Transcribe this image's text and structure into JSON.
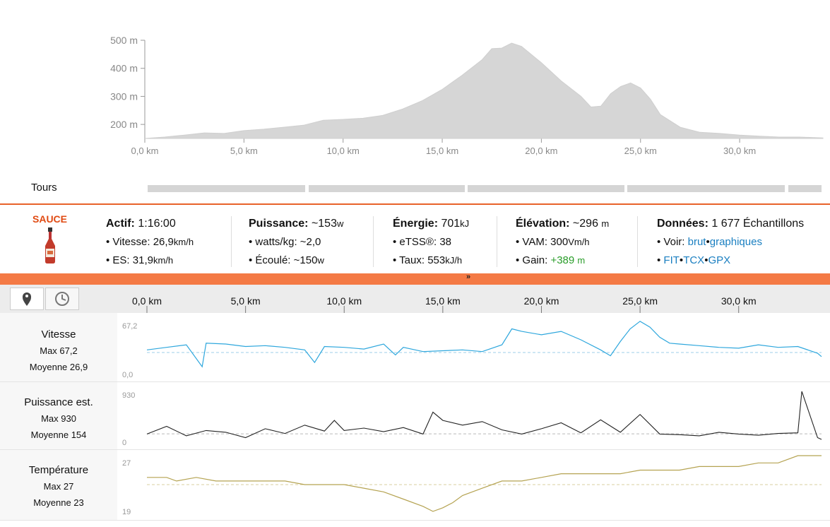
{
  "elevation_chart": {
    "y_ticks": [
      "500 m",
      "400 m",
      "300 m",
      "200 m"
    ],
    "x_ticks": [
      "0,0 km",
      "5,0 km",
      "10,0 km",
      "15,0 km",
      "20,0 km",
      "25,0 km",
      "30,0 km"
    ],
    "fill_color": "#d6d6d6"
  },
  "laps": {
    "label": "Tours"
  },
  "summary": {
    "logo_text": "SAUCE",
    "active": {
      "label": "Actif:",
      "value": "1:16:00"
    },
    "speed": {
      "label": "Vitesse:",
      "value": "26,9",
      "unit": "km/h"
    },
    "es": {
      "label": "ES:",
      "value": "31,9",
      "unit": "km/h"
    },
    "power": {
      "label": "Puissance:",
      "value": "~153",
      "unit": "w"
    },
    "wkg": {
      "label": "watts/kg:",
      "value": "~2,0"
    },
    "elapsed": {
      "label": "Écoulé:",
      "value": "~150",
      "unit": "w"
    },
    "energy": {
      "label": "Énergie:",
      "value": "701",
      "unit": "kJ"
    },
    "etss": {
      "label": "eTSS®:",
      "value": "38"
    },
    "rate": {
      "label": "Taux:",
      "value": "553",
      "unit": "kJ/h"
    },
    "elevation": {
      "label": "Élévation:",
      "value": "~296",
      "unit": "m"
    },
    "vam": {
      "label": "VAM:",
      "value": "300",
      "unit": "Vm/h"
    },
    "gain": {
      "label": "Gain:",
      "value": "+389",
      "unit": "m"
    },
    "data": {
      "label": "Données:",
      "value": "1 677 Échantillons"
    },
    "view": {
      "label": "Voir:",
      "raw": "brut",
      "graphs": "graphiques"
    },
    "formats": [
      "FIT",
      "TCX",
      "GPX"
    ]
  },
  "toolbar": {
    "distance_icon": "map-pin-icon",
    "time_icon": "clock-icon",
    "x_ticks": [
      "0,0 km",
      "5,0 km",
      "10,0 km",
      "15,0 km",
      "20,0 km",
      "25,0 km",
      "30,0 km"
    ]
  },
  "streams": {
    "speed": {
      "title": "Vitesse",
      "max": "Max 67,2",
      "avg": "Moyenne 26,9",
      "ymax": "67,2",
      "ymin": "0,0",
      "color": "#2ea7dd"
    },
    "power": {
      "title": "Puissance est.",
      "max": "Max 930",
      "avg": "Moyenne 154",
      "ymax": "930",
      "ymin": "0",
      "color": "#222222"
    },
    "temp": {
      "title": "Température",
      "max": "Max 27",
      "avg": "Moyenne 23",
      "ymax": "27",
      "ymin": "19",
      "color": "#b5a352"
    }
  },
  "chart_data": [
    {
      "type": "area",
      "title": "",
      "xlabel": "",
      "ylabel": "",
      "x_unit": "km",
      "y_unit": "m",
      "xlim": [
        0,
        34.2
      ],
      "ylim": [
        150,
        500
      ],
      "series": [
        {
          "x": [
            0,
            1,
            2,
            3,
            4,
            5,
            6,
            7,
            8,
            9,
            10,
            11,
            12,
            13,
            14,
            15,
            16,
            17,
            17.5,
            18,
            18.5,
            19,
            20,
            21,
            22,
            22.5,
            23,
            23.5,
            24,
            24.5,
            25,
            25.5,
            26,
            27,
            28,
            29,
            30,
            31,
            32,
            33,
            34.2
          ],
          "y": [
            150,
            155,
            162,
            170,
            168,
            178,
            183,
            190,
            197,
            215,
            218,
            222,
            232,
            255,
            285,
            325,
            375,
            430,
            470,
            472,
            490,
            478,
            420,
            355,
            300,
            262,
            265,
            310,
            335,
            348,
            330,
            290,
            235,
            190,
            172,
            168,
            162,
            158,
            155,
            155,
            152
          ]
        }
      ]
    },
    {
      "type": "line",
      "title": "",
      "xlabel": "",
      "ylabel": "",
      "x_unit": "km",
      "xlim": [
        0,
        34.2
      ],
      "ylim": [
        0,
        67.2
      ],
      "series": [
        {
          "x": [
            0,
            1,
            2,
            2.8,
            3,
            4,
            5,
            6,
            7,
            8,
            8.5,
            9,
            10,
            11,
            12,
            12.6,
            13,
            14,
            15,
            16,
            17,
            18,
            18.5,
            19,
            20,
            21,
            22,
            23,
            23.5,
            24,
            24.5,
            25,
            25.5,
            26,
            26.5,
            27,
            28,
            29,
            30,
            31,
            32,
            33,
            34,
            34.2
          ],
          "y": [
            30,
            33,
            36,
            10,
            38,
            37,
            34,
            35,
            33,
            30,
            15,
            34,
            33,
            31,
            37,
            24,
            33,
            28,
            29,
            30,
            28,
            36,
            55,
            52,
            48,
            52,
            42,
            30,
            23,
            40,
            55,
            64,
            57,
            45,
            38,
            37,
            35,
            33,
            32,
            36,
            33,
            34,
            26,
            22
          ]
        }
      ]
    },
    {
      "type": "line",
      "title": "",
      "xlabel": "",
      "ylabel": "",
      "x_unit": "km",
      "xlim": [
        0,
        34.2
      ],
      "ylim": [
        0,
        930
      ],
      "series": [
        {
          "x": [
            0,
            1,
            2,
            3,
            4,
            5,
            6,
            7,
            8,
            9,
            9.5,
            10,
            11,
            12,
            13,
            14,
            14.5,
            15,
            16,
            17,
            18,
            19,
            20,
            21,
            22,
            23,
            24,
            25,
            26,
            27,
            28,
            29,
            30,
            31,
            32,
            33,
            33.2,
            34,
            34.2
          ],
          "y": [
            150,
            280,
            120,
            210,
            180,
            90,
            240,
            160,
            300,
            200,
            380,
            210,
            250,
            190,
            260,
            150,
            520,
            380,
            300,
            360,
            220,
            150,
            240,
            340,
            170,
            390,
            180,
            480,
            150,
            140,
            120,
            180,
            150,
            130,
            160,
            170,
            870,
            90,
            60
          ]
        }
      ]
    },
    {
      "type": "line",
      "title": "",
      "xlabel": "",
      "ylabel": "",
      "x_unit": "km",
      "xlim": [
        0,
        34.2
      ],
      "ylim": [
        19,
        27
      ],
      "series": [
        {
          "x": [
            0,
            1,
            1.5,
            2.5,
            3.5,
            4,
            5,
            6,
            7,
            8,
            9,
            10,
            11,
            12,
            13,
            14,
            14.5,
            15,
            15.5,
            16,
            17,
            18,
            19,
            20,
            21,
            22,
            23,
            24,
            25,
            26,
            27,
            28,
            29,
            30,
            31,
            32,
            33,
            34.2
          ],
          "y": [
            24,
            24,
            23.5,
            24,
            23.5,
            23.5,
            23.5,
            23.5,
            23.5,
            23,
            23,
            23,
            22.5,
            22,
            21,
            20,
            19.3,
            19.8,
            20.5,
            21.5,
            22.5,
            23.5,
            23.5,
            24,
            24.5,
            24.5,
            24.5,
            24.5,
            25,
            25,
            25,
            25.5,
            25.5,
            25.5,
            26,
            26,
            27,
            27
          ]
        }
      ]
    }
  ]
}
